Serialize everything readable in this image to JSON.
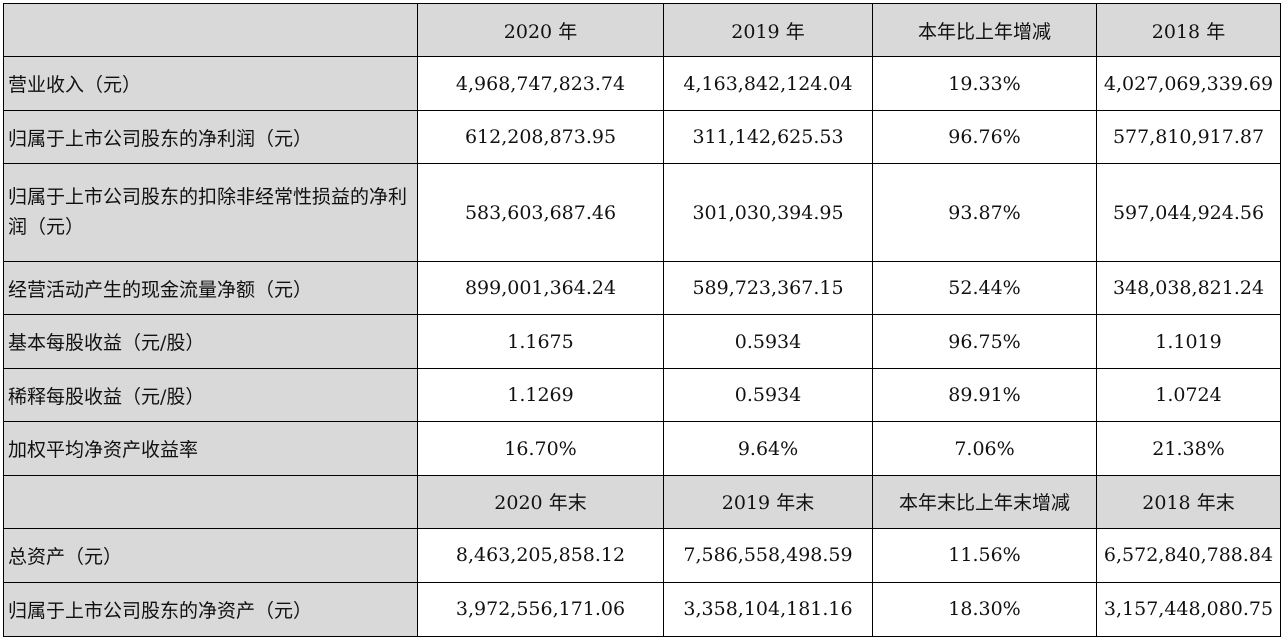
{
  "header1": [
    "",
    "2020 年",
    "2019 年",
    "本年比上年增减",
    "2018 年"
  ],
  "rows1": [
    {
      "label": "营业收入（元）",
      "values": [
        "4,968,747,823.74",
        "4,163,842,124.04",
        "19.33%",
        "4,027,069,339.69"
      ]
    },
    {
      "label": "归属于上市公司股东的净利润（元）",
      "values": [
        "612,208,873.95",
        "311,142,625.53",
        "96.76%",
        "577,810,917.87"
      ]
    },
    {
      "label": "归属于上市公司股东的扣除非经常性损益的净利润（元）",
      "values": [
        "583,603,687.46",
        "301,030,394.95",
        "93.87%",
        "597,044,924.56"
      ]
    },
    {
      "label": "经营活动产生的现金流量净额（元）",
      "values": [
        "899,001,364.24",
        "589,723,367.15",
        "52.44%",
        "348,038,821.24"
      ]
    },
    {
      "label": "基本每股收益（元/股）",
      "values": [
        "1.1675",
        "0.5934",
        "96.75%",
        "1.1019"
      ]
    },
    {
      "label": "稀释每股收益（元/股）",
      "values": [
        "1.1269",
        "0.5934",
        "89.91%",
        "1.0724"
      ]
    },
    {
      "label": "加权平均净资产收益率",
      "values": [
        "16.70%",
        "9.64%",
        "7.06%",
        "21.38%"
      ]
    }
  ],
  "header2": [
    "",
    "2020 年末",
    "2019 年末",
    "本年末比上年末增减",
    "2018 年末"
  ],
  "rows2": [
    {
      "label": "总资产（元）",
      "values": [
        "8,463,205,858.12",
        "7,586,558,498.59",
        "11.56%",
        "6,572,840,788.84"
      ]
    },
    {
      "label": "归属于上市公司股东的净资产（元）",
      "values": [
        "3,972,556,171.06",
        "3,358,104,181.16",
        "18.30%",
        "3,157,448,080.75"
      ]
    }
  ]
}
